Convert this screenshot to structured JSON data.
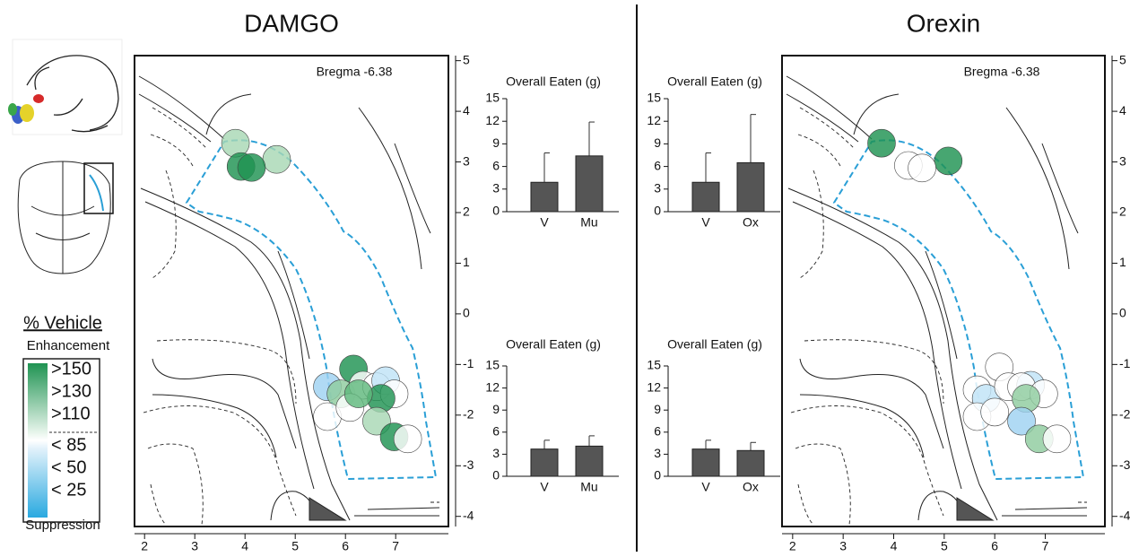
{
  "chart_data": [
    {
      "type": "scatter",
      "title": "DAMGO",
      "annotation": "Bregma -6.38",
      "x": [
        3.81,
        4.63,
        3.92,
        4.13,
        6.16,
        5.64,
        5.91,
        6.35,
        6.62,
        6.8,
        6.97,
        6.71,
        5.64,
        6.09,
        6.62,
        6.97,
        7.24,
        6.26
      ],
      "y": [
        3.37,
        3.05,
        2.91,
        2.89,
        -1.09,
        -1.44,
        -1.58,
        -1.41,
        -1.44,
        -1.32,
        -1.58,
        -1.67,
        -2.03,
        -1.85,
        -2.12,
        -2.43,
        -2.47,
        -1.58
      ],
      "colors": [
        "#a8d8b4",
        "#a8d8b4",
        "#1f9352",
        "#1f9352",
        "#1f9352",
        "#9fd2f2",
        "#8fcc9f",
        "#ffffff",
        "#ffffff",
        "#bfe3f7",
        "#ffffff",
        "#1f9352",
        "#ffffff",
        "#ffffff",
        "#a8d8b4",
        "#1f9352",
        "#ffffff",
        "#5fb87d"
      ],
      "xlim": [
        1.8,
        8.05
      ],
      "ylim": [
        -4.2,
        5.1
      ],
      "xticks": [
        2,
        3,
        4,
        5,
        6,
        7
      ],
      "yticks": [
        5,
        4,
        3,
        2,
        1,
        0,
        -1,
        -2,
        -3,
        -4
      ]
    },
    {
      "type": "bar",
      "title": "Overall Eaten (g)",
      "categories": [
        "V",
        "Mu"
      ],
      "values": [
        3.9,
        7.4
      ],
      "errors": [
        3.9,
        4.5
      ],
      "color": "#555555",
      "ylim": [
        0,
        15
      ],
      "yticks": [
        0,
        3,
        6,
        9,
        12,
        15
      ]
    },
    {
      "type": "bar",
      "title": "Overall Eaten (g)",
      "categories": [
        "V",
        "Mu"
      ],
      "values": [
        3.7,
        4.1
      ],
      "errors": [
        1.2,
        1.4
      ],
      "color": "#555555",
      "ylim": [
        0,
        15
      ],
      "yticks": [
        0,
        3,
        6,
        9,
        12,
        15
      ]
    },
    {
      "type": "scatter",
      "title": "Orexin",
      "annotation": "Bregma -6.38",
      "x": [
        3.76,
        5.08,
        4.29,
        4.56,
        6.09,
        5.65,
        5.83,
        6.27,
        6.71,
        6.53,
        6.97,
        6.62,
        5.65,
        6.0,
        6.53,
        6.88,
        7.23
      ],
      "y": [
        3.37,
        3.02,
        2.93,
        2.88,
        -1.05,
        -1.5,
        -1.67,
        -1.44,
        -1.41,
        -1.44,
        -1.58,
        -1.67,
        -2.03,
        -1.94,
        -2.12,
        -2.47,
        -2.47
      ],
      "colors": [
        "#1f9352",
        "#1f9352",
        "#ffffff",
        "#ffffff",
        "#ffffff",
        "#ffffff",
        "#bfe3f7",
        "#ffffff",
        "#bfe3f7",
        "#ffffff",
        "#ffffff",
        "#8fcc9f",
        "#ffffff",
        "#ffffff",
        "#9fd2f2",
        "#8fcc9f",
        "#ffffff"
      ],
      "xlim": [
        1.79,
        8.18
      ],
      "ylim": [
        -4.2,
        5.1
      ],
      "xticks": [
        2,
        3,
        4,
        5,
        6,
        7
      ],
      "yticks": [
        5,
        4,
        3,
        2,
        1,
        0,
        -1,
        -2,
        -3,
        -4
      ]
    },
    {
      "type": "bar",
      "title": "Overall Eaten (g)",
      "categories": [
        "V",
        "Ox"
      ],
      "values": [
        3.9,
        6.5
      ],
      "errors": [
        3.9,
        6.4
      ],
      "color": "#555555",
      "ylim": [
        0,
        15
      ],
      "yticks": [
        0,
        3,
        6,
        9,
        12,
        15
      ]
    },
    {
      "type": "bar",
      "title": "Overall Eaten (g)",
      "categories": [
        "V",
        "Ox"
      ],
      "values": [
        3.7,
        3.5
      ],
      "errors": [
        1.2,
        1.1
      ],
      "color": "#555555",
      "ylim": [
        0,
        15
      ],
      "yticks": [
        0,
        3,
        6,
        9,
        12,
        15
      ]
    }
  ],
  "legend": {
    "title": "% Vehicle",
    "enhancement": "Enhancement",
    "suppression": "Suppression",
    "items": [
      ">150",
      ">130",
      ">110",
      "< 85",
      "< 50",
      "< 25"
    ]
  }
}
